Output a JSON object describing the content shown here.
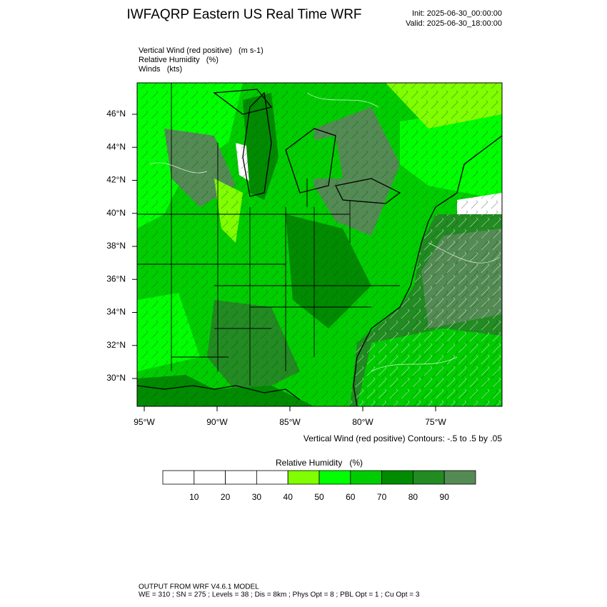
{
  "header": {
    "title": "IWFAQRP Eastern US Real Time WRF",
    "init": "Init: 2025-06-30_00:00:00",
    "valid": "Valid: 2025-06-30_18:00:00"
  },
  "fields": [
    "Vertical Wind (red positive)   (m s-1)",
    "Relative Humidity   (%)",
    "Winds   (kts)"
  ],
  "map": {
    "lat_labels": [
      "46°N",
      "44°N",
      "42°N",
      "40°N",
      "38°N",
      "36°N",
      "34°N",
      "32°N",
      "30°N"
    ],
    "lon_labels": [
      "95°W",
      "90°W",
      "85°W",
      "80°W",
      "75°W"
    ],
    "contour_note": "Vertical Wind (red positive) Contours: -.5 to .5 by .05"
  },
  "colorbar": {
    "title": "Relative Humidity   (%)",
    "ticks": [
      10,
      20,
      30,
      40,
      50,
      60,
      70,
      80,
      90
    ],
    "colors": [
      "#ffffff",
      "#ffffff",
      "#ffffff",
      "#ffffff",
      "#7fff00",
      "#00ff00",
      "#00cd00",
      "#008b00",
      "#228b22",
      "#548b54"
    ]
  },
  "footer": [
    "OUTPUT FROM WRF V4.6.1 MODEL",
    "WE = 310 ; SN = 275 ; Levels = 38 ; Dis = 8km ; Phys Opt = 8 ; PBL Opt = 1 ; Cu Opt = 3"
  ]
}
